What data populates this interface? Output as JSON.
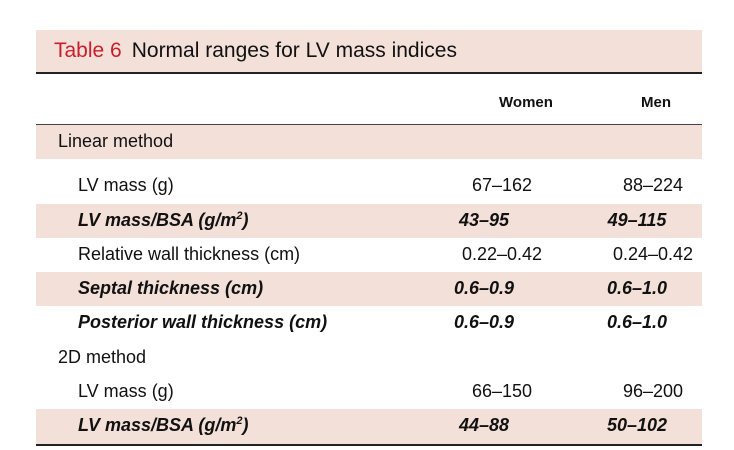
{
  "table": {
    "number": "Table 6",
    "title": "Normal ranges for LV mass indices",
    "columns": [
      "Women",
      "Men"
    ],
    "sections": [
      {
        "name": "Linear method",
        "rows": [
          {
            "label": "LV mass (g)",
            "women": "67–162",
            "men": "88–224",
            "emphasis": false,
            "shaded": false
          },
          {
            "label": "LV mass/BSA (g/m",
            "label_sup": "2",
            "label_end": ")",
            "women": "43–95",
            "men": "49–115",
            "emphasis": true,
            "shaded": true
          },
          {
            "label": "Relative wall thickness (cm)",
            "women": "0.22–0.42",
            "men": "0.24–0.42",
            "emphasis": false,
            "shaded": false
          },
          {
            "label": "Septal thickness (cm)",
            "women": "0.6–0.9",
            "men": "0.6–1.0",
            "emphasis": true,
            "shaded": true
          },
          {
            "label": "Posterior wall thickness (cm)",
            "women": "0.6–0.9",
            "men": "0.6–1.0",
            "emphasis": true,
            "shaded": false
          }
        ]
      },
      {
        "name": "2D method",
        "rows": [
          {
            "label": "LV mass (g)",
            "women": "66–150",
            "men": "96–200",
            "emphasis": false,
            "shaded": false
          },
          {
            "label": "LV mass/BSA (g/m",
            "label_sup": "2",
            "label_end": ")",
            "women": "44–88",
            "men": "50–102",
            "emphasis": true,
            "shaded": true
          }
        ]
      }
    ],
    "colors": {
      "shade": "#f3e0d8",
      "accent": "#c8202a"
    }
  }
}
